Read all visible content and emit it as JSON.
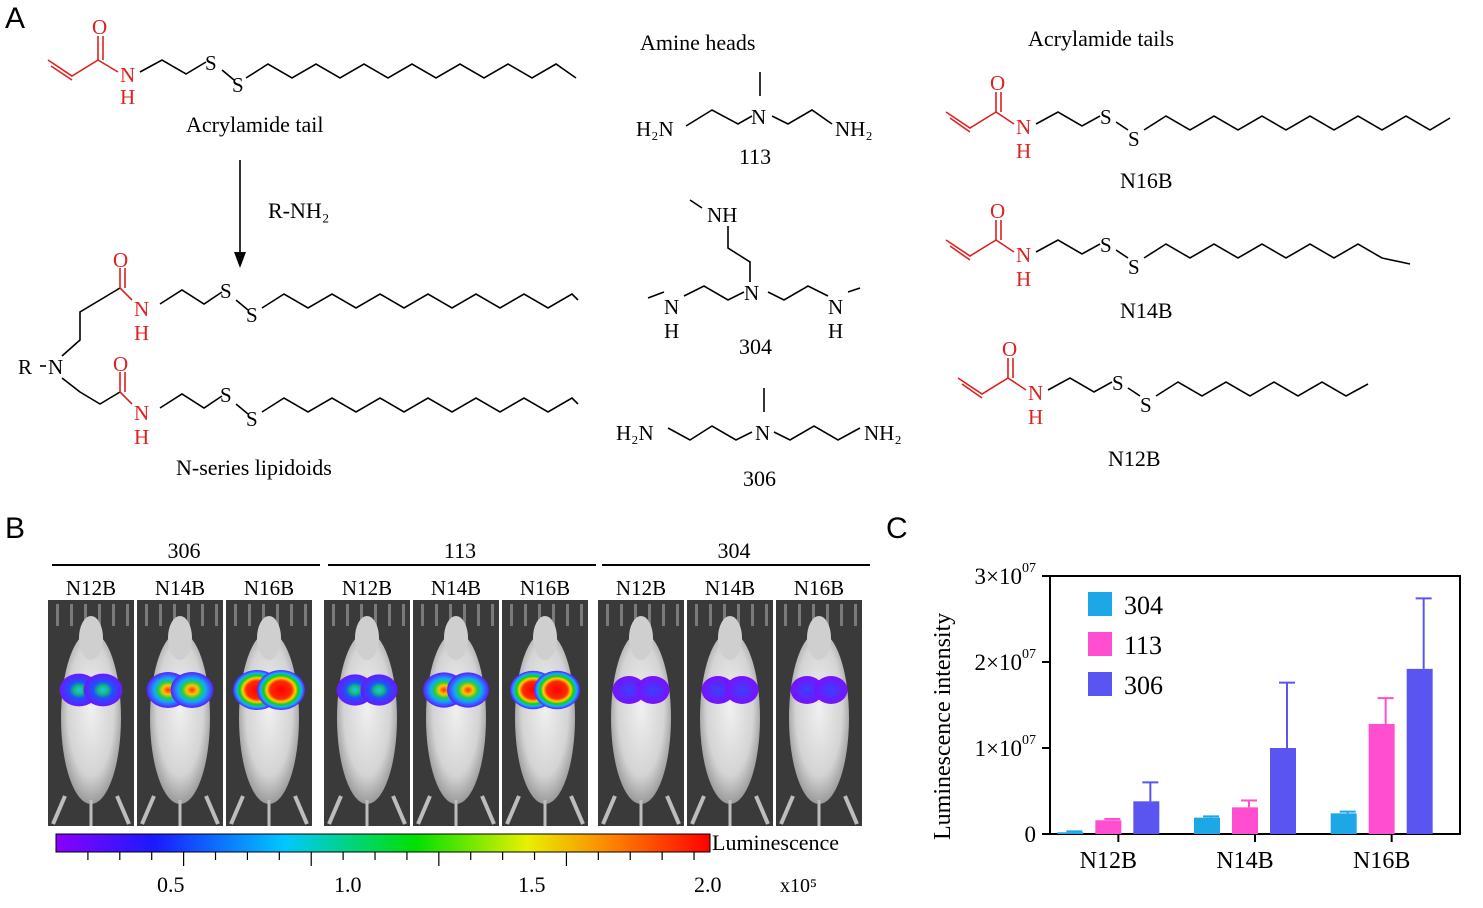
{
  "panels": {
    "a": "A",
    "b": "B",
    "c": "C"
  },
  "panel_a": {
    "acrylamide_tail_caption": "Acrylamide tail",
    "reagent": "R-NH₂",
    "product_caption": "N-series lipidoids",
    "r_group": "R",
    "amine_heads_title": "Amine heads",
    "acrylamide_tails_title": "Acrylamide tails",
    "amines": [
      {
        "id": "113",
        "left_group": "H₂N",
        "right_group": "NH₂"
      },
      {
        "id": "304",
        "groups": "NH"
      },
      {
        "id": "306",
        "left_group": "H₂N",
        "right_group": "NH₂"
      }
    ],
    "tails": [
      "N16B",
      "N14B",
      "N12B"
    ],
    "atoms": {
      "O": "O",
      "N": "N",
      "H": "H",
      "S": "S"
    }
  },
  "panel_b": {
    "groups": [
      {
        "amine": "306",
        "tails": [
          "N12B",
          "N14B",
          "N16B"
        ]
      },
      {
        "amine": "113",
        "tails": [
          "N12B",
          "N14B",
          "N16B"
        ]
      },
      {
        "amine": "304",
        "tails": [
          "N12B",
          "N14B",
          "N16B"
        ]
      }
    ],
    "colorbar": {
      "label": "Luminescence",
      "ticks": [
        "0.5",
        "1.0",
        "1.5",
        "2.0"
      ],
      "unit": "x10⁵"
    },
    "signal_levels": [
      0.55,
      0.75,
      1.0,
      0.45,
      0.7,
      0.9,
      0.25,
      0.25,
      0.25
    ]
  },
  "chart_data": {
    "type": "bar",
    "categories": [
      "N12B",
      "N14B",
      "N16B"
    ],
    "ylabel": "Luminescence intensity",
    "ytick_labels": [
      "0",
      "1×10",
      "2×10",
      "3×10"
    ],
    "ytick_exponent": "07",
    "ylim": [
      0,
      30000000
    ],
    "legend_position": "top-left",
    "series": [
      {
        "name": "304",
        "color": "#1ea7e6",
        "values": [
          200000,
          1900000,
          2400000
        ],
        "errors": [
          100000,
          150000,
          200000
        ]
      },
      {
        "name": "113",
        "color": "#ff4fd0",
        "values": [
          1600000,
          3100000,
          12800000
        ],
        "errors": [
          150000,
          800000,
          3000000
        ]
      },
      {
        "name": "306",
        "color": "#5a55f0",
        "values": [
          3800000,
          10000000,
          19200000
        ],
        "errors": [
          2200000,
          7600000,
          8200000
        ]
      }
    ]
  }
}
